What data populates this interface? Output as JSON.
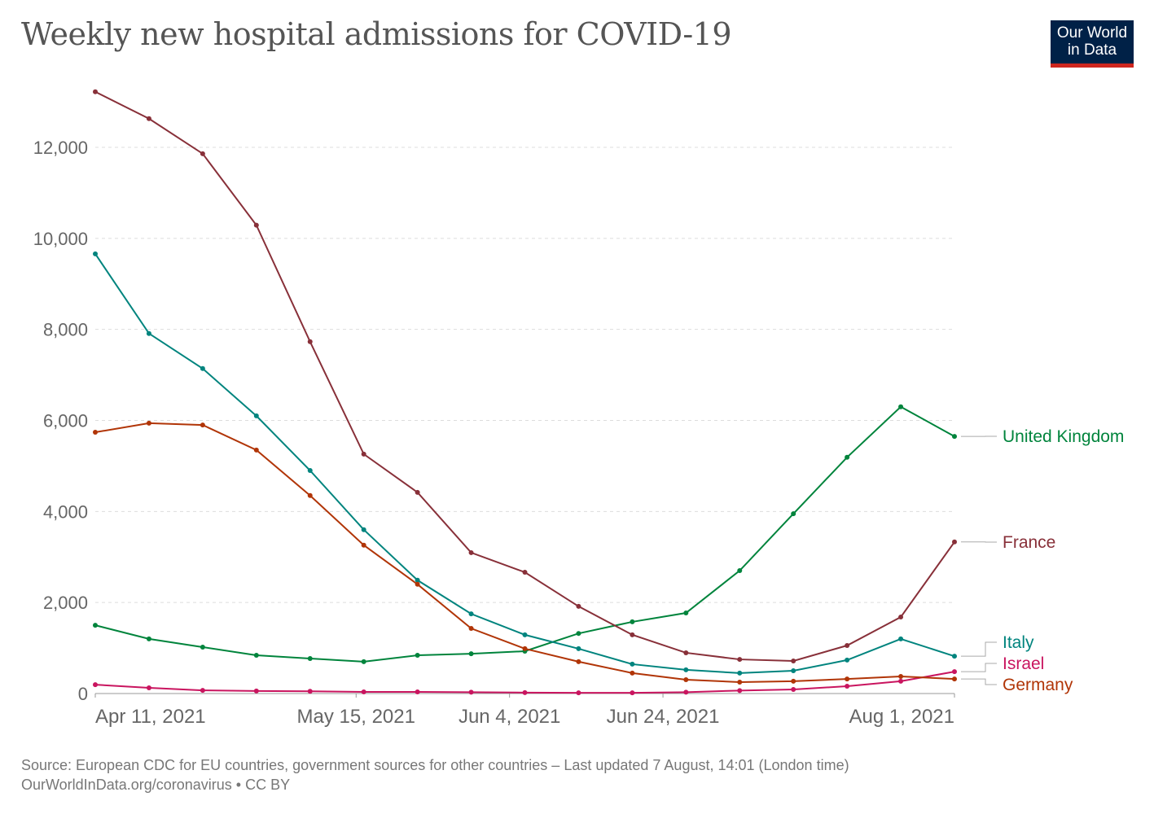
{
  "title": "Weekly new hospital admissions for COVID-19",
  "logo": {
    "line1": "Our World",
    "line2": "in Data",
    "bg": "#002147",
    "accent": "#ce261e"
  },
  "footer": {
    "source": "Source: European CDC for EU countries, government sources for other countries – Last updated 7 August, 14:01 (London time)",
    "credit": "OurWorldInData.org/coronavirus • CC BY"
  },
  "chart_data": {
    "type": "line",
    "title": "Weekly new hospital admissions for COVID-19",
    "x": [
      "2021-04-11",
      "2021-04-18",
      "2021-04-25",
      "2021-05-02",
      "2021-05-09",
      "2021-05-16",
      "2021-05-23",
      "2021-05-30",
      "2021-06-06",
      "2021-06-13",
      "2021-06-20",
      "2021-06-27",
      "2021-07-04",
      "2021-07-11",
      "2021-07-18",
      "2021-07-25",
      "2021-08-01"
    ],
    "xticks": [
      {
        "date": "2021-04-11",
        "label": "Apr 11, 2021"
      },
      {
        "date": "2021-05-15",
        "label": "May 15, 2021"
      },
      {
        "date": "2021-06-04",
        "label": "Jun 4, 2021"
      },
      {
        "date": "2021-06-24",
        "label": "Jun 24, 2021"
      },
      {
        "date": "2021-08-01",
        "label": "Aug 1, 2021"
      }
    ],
    "yticks": [
      {
        "v": 0,
        "label": "0"
      },
      {
        "v": 2000,
        "label": "2,000"
      },
      {
        "v": 4000,
        "label": "4,000"
      },
      {
        "v": 6000,
        "label": "6,000"
      },
      {
        "v": 8000,
        "label": "8,000"
      },
      {
        "v": 10000,
        "label": "10,000"
      },
      {
        "v": 12000,
        "label": "12,000"
      }
    ],
    "ylim": [
      0,
      13500
    ],
    "grid": "horizontal dashed",
    "legend": "right, end-of-line labels",
    "series": [
      {
        "name": "United Kingdom",
        "color": "#00843c",
        "values": [
          1500,
          1200,
          1020,
          840,
          770,
          700,
          840,
          875,
          930,
          1320,
          1575,
          1770,
          2700,
          3950,
          5190,
          6300,
          5650
        ]
      },
      {
        "name": "France",
        "color": "#883039",
        "values": [
          13220,
          12630,
          11860,
          10290,
          7730,
          5260,
          4420,
          3095,
          2665,
          1915,
          1290,
          895,
          750,
          715,
          1055,
          1680,
          3330
        ]
      },
      {
        "name": "Italy",
        "color": "#00847e",
        "values": [
          9660,
          7910,
          7140,
          6100,
          4900,
          3600,
          2490,
          1750,
          1290,
          985,
          645,
          520,
          450,
          500,
          735,
          1200,
          820
        ]
      },
      {
        "name": "Israel",
        "color": "#c9155f",
        "values": [
          195,
          125,
          70,
          55,
          50,
          35,
          35,
          30,
          20,
          15,
          15,
          30,
          65,
          90,
          160,
          270,
          480
        ]
      },
      {
        "name": "Germany",
        "color": "#b13507",
        "values": [
          5740,
          5940,
          5900,
          5350,
          4350,
          3260,
          2400,
          1430,
          985,
          700,
          450,
          305,
          250,
          270,
          320,
          375,
          320
        ]
      }
    ]
  }
}
